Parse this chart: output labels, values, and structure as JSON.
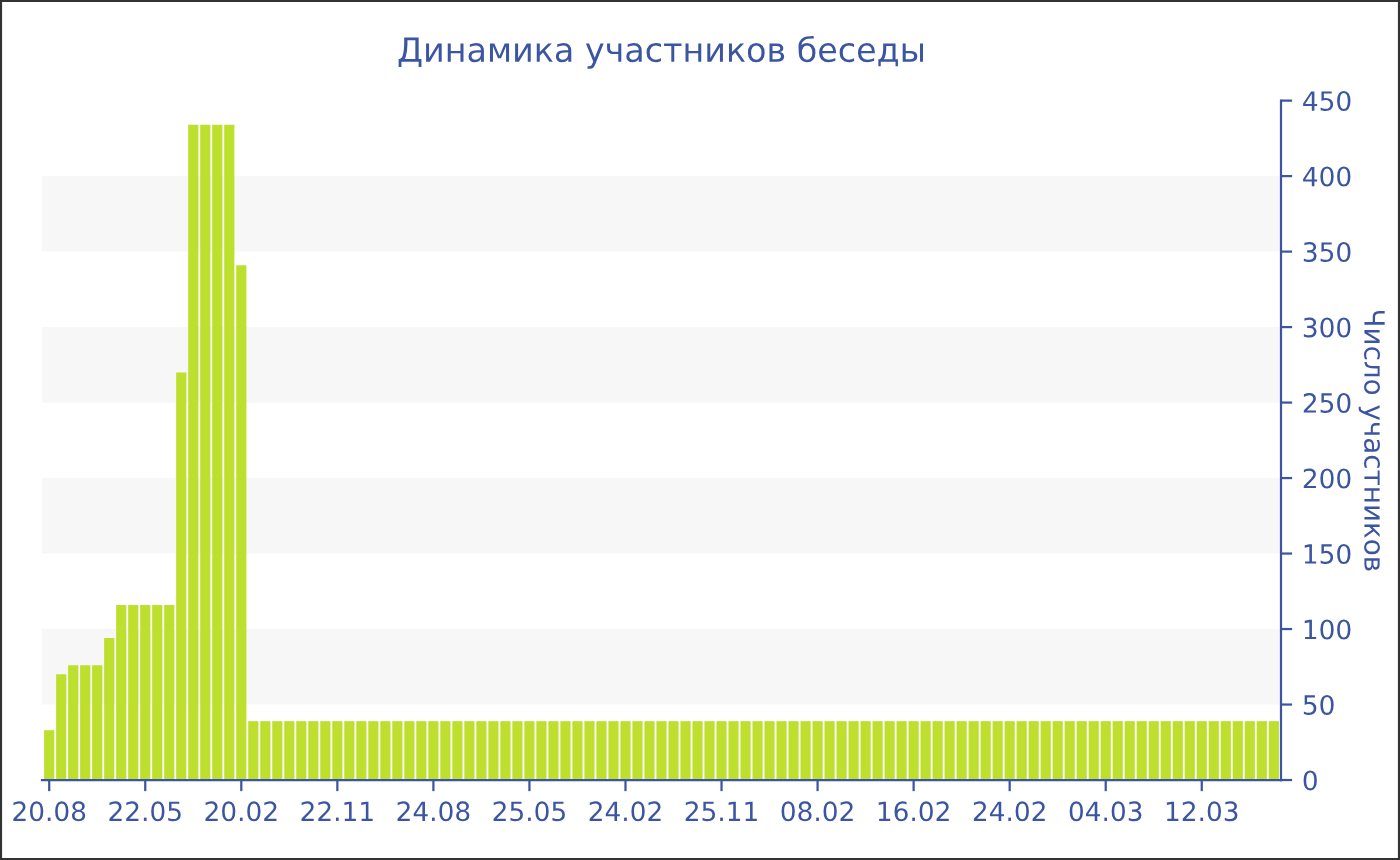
{
  "chart_data": {
    "type": "bar",
    "title": "Динамика участников беседы",
    "ylabel": "Число участников",
    "categories": [
      "20.08",
      null,
      null,
      null,
      null,
      null,
      null,
      null,
      "22.05",
      null,
      null,
      null,
      null,
      null,
      null,
      null,
      "20.02",
      null,
      null,
      null,
      null,
      null,
      null,
      null,
      "22.11",
      null,
      null,
      null,
      null,
      null,
      null,
      null,
      "24.08",
      null,
      null,
      null,
      null,
      null,
      null,
      null,
      "25.05",
      null,
      null,
      null,
      null,
      null,
      null,
      null,
      "24.02",
      null,
      null,
      null,
      null,
      null,
      null,
      null,
      "25.11",
      null,
      null,
      null,
      null,
      null,
      null,
      null,
      "08.02",
      null,
      null,
      null,
      null,
      null,
      null,
      null,
      "16.02",
      null,
      null,
      null,
      null,
      null,
      null,
      null,
      "24.02",
      null,
      null,
      null,
      null,
      null,
      null,
      null,
      "04.03",
      null,
      null,
      null,
      null,
      null,
      null,
      null,
      "12.03",
      null,
      null,
      null,
      null,
      null,
      null
    ],
    "values": [
      33,
      70,
      76,
      76,
      76,
      94,
      116,
      116,
      116,
      116,
      116,
      270,
      434,
      434,
      434,
      434,
      341,
      39,
      39,
      39,
      39,
      39,
      39,
      39,
      39,
      39,
      39,
      39,
      39,
      39,
      39,
      39,
      39,
      39,
      39,
      39,
      39,
      39,
      39,
      39,
      39,
      39,
      39,
      39,
      39,
      39,
      39,
      39,
      39,
      39,
      39,
      39,
      39,
      39,
      39,
      39,
      39,
      39,
      39,
      39,
      39,
      39,
      39,
      39,
      39,
      39,
      39,
      39,
      39,
      39,
      39,
      39,
      39,
      39,
      39,
      39,
      39,
      39,
      39,
      39,
      39,
      39,
      39,
      39,
      39,
      39,
      39,
      39,
      39,
      39,
      39,
      39,
      39,
      39,
      39,
      39,
      39,
      39,
      39,
      39,
      39,
      39,
      39
    ],
    "color": "#bde02f",
    "ylim": [
      0,
      450
    ],
    "yticks": [
      0,
      50,
      100,
      150,
      200,
      250,
      300,
      350,
      400,
      450
    ],
    "bands": [
      {
        "axis": "y",
        "from": 50,
        "to": 100,
        "color": "#f7f7f7"
      },
      {
        "axis": "y",
        "from": 150,
        "to": 200,
        "color": "#f7f7f7"
      },
      {
        "axis": "y",
        "from": 250,
        "to": 300,
        "color": "#f7f7f7"
      },
      {
        "axis": "y",
        "from": 350,
        "to": 400,
        "color": "#f7f7f7"
      }
    ]
  }
}
